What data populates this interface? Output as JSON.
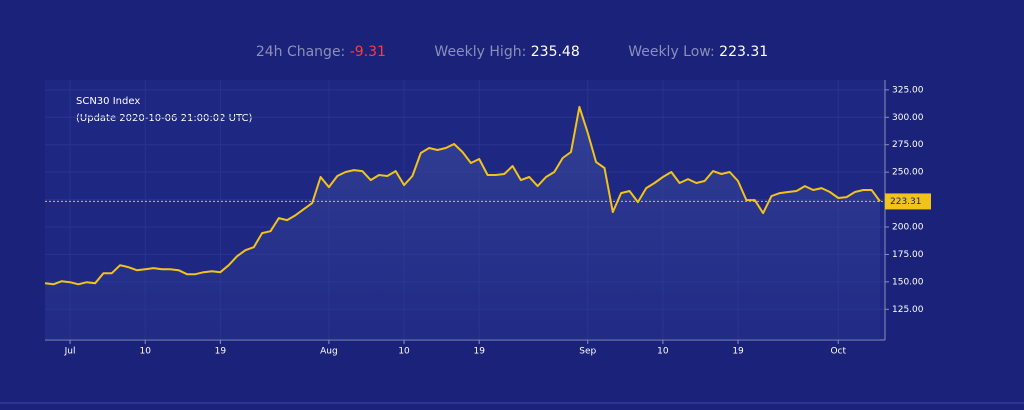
{
  "header": {
    "change_label": "24h Change:",
    "change_value": "-9.31",
    "high_label": "Weekly High:",
    "high_value": "235.48",
    "low_label": "Weekly Low:",
    "low_value": "223.31"
  },
  "chart_data": {
    "type": "line",
    "title": "SCN30 Index",
    "subtitle": "(Update 2020-10-06 21:00:02 UTC)",
    "x": [
      "Jun 28",
      "Jun 29",
      "Jun 30",
      "Jul 1",
      "Jul 2",
      "Jul 3",
      "Jul 4",
      "Jul 5",
      "Jul 6",
      "Jul 7",
      "Jul 8",
      "Jul 9",
      "Jul 10",
      "Jul 11",
      "Jul 12",
      "Jul 13",
      "Jul 14",
      "Jul 15",
      "Jul 16",
      "Jul 17",
      "Jul 18",
      "Jul 19",
      "Jul 20",
      "Jul 21",
      "Jul 22",
      "Jul 23",
      "Jul 24",
      "Jul 25",
      "Jul 26",
      "Jul 27",
      "Jul 28",
      "Jul 29",
      "Jul 30",
      "Jul 31",
      "Aug 1",
      "Aug 2",
      "Aug 3",
      "Aug 4",
      "Aug 5",
      "Aug 6",
      "Aug 7",
      "Aug 8",
      "Aug 9",
      "Aug 10",
      "Aug 11",
      "Aug 12",
      "Aug 13",
      "Aug 14",
      "Aug 15",
      "Aug 16",
      "Aug 17",
      "Aug 18",
      "Aug 19",
      "Aug 20",
      "Aug 21",
      "Aug 22",
      "Aug 23",
      "Aug 24",
      "Aug 25",
      "Aug 26",
      "Aug 27",
      "Aug 28",
      "Aug 29",
      "Aug 30",
      "Aug 31",
      "Sep 1",
      "Sep 2",
      "Sep 3",
      "Sep 4",
      "Sep 5",
      "Sep 6",
      "Sep 7",
      "Sep 8",
      "Sep 9",
      "Sep 10",
      "Sep 11",
      "Sep 12",
      "Sep 13",
      "Sep 14",
      "Sep 15",
      "Sep 16",
      "Sep 17",
      "Sep 18",
      "Sep 19",
      "Sep 20",
      "Sep 21",
      "Sep 22",
      "Sep 23",
      "Sep 24",
      "Sep 25",
      "Sep 26",
      "Sep 27",
      "Sep 28",
      "Sep 29",
      "Sep 30",
      "Oct 1",
      "Oct 2",
      "Oct 3",
      "Oct 4",
      "Oct 5",
      "Oct 6"
    ],
    "series": [
      {
        "name": "SCN30 Index",
        "color": "#f2c318",
        "values": [
          148.7,
          147.8,
          150.6,
          149.7,
          147.8,
          149.7,
          148.7,
          157.9,
          157.9,
          165.2,
          163.4,
          160.6,
          161.5,
          162.5,
          161.5,
          161.5,
          160.6,
          157.0,
          157.0,
          158.8,
          159.7,
          158.8,
          165.2,
          173.4,
          178.9,
          181.6,
          194.4,
          196.2,
          208.1,
          206.3,
          210.8,
          216.3,
          221.8,
          245.6,
          236.4,
          246.5,
          250.1,
          251.9,
          251.0,
          242.8,
          247.4,
          246.5,
          251.0,
          238.2,
          246.5,
          267.5,
          272.0,
          270.2,
          272.0,
          275.7,
          268.4,
          258.3,
          262.0,
          247.4,
          247.4,
          248.3,
          255.6,
          242.8,
          245.6,
          237.3,
          245.6,
          250.1,
          262.9,
          268.4,
          309.5,
          285.7,
          259.2,
          253.8,
          213.6,
          230.9,
          232.8,
          222.7,
          235.5,
          240.1,
          245.6,
          250.1,
          240.1,
          243.7,
          240.1,
          241.9,
          251.0,
          248.3,
          250.1,
          241.9,
          224.5,
          224.5,
          212.7,
          228.2,
          230.9,
          231.9,
          232.8,
          237.3,
          233.7,
          235.5,
          231.9,
          226.4,
          227.3,
          231.9,
          233.7,
          233.7,
          223.31
        ]
      }
    ],
    "last_value": {
      "value": 223.31,
      "label": "223.31"
    },
    "ylim": [
      97,
      334
    ],
    "yticks": [
      {
        "value": 125,
        "label": "125.00"
      },
      {
        "value": 150,
        "label": "150.00"
      },
      {
        "value": 175,
        "label": "175.00"
      },
      {
        "value": 200,
        "label": "200.00"
      },
      {
        "value": 225,
        "label": "225.00"
      },
      {
        "value": 250,
        "label": "250.00"
      },
      {
        "value": 275,
        "label": "275.00"
      },
      {
        "value": 300,
        "label": "300.00"
      },
      {
        "value": 325,
        "label": "325.00"
      }
    ],
    "xticks": [
      {
        "value": "Jul 1",
        "label": "Jul"
      },
      {
        "value": "Jul 10",
        "label": "10"
      },
      {
        "value": "Jul 19",
        "label": "19"
      },
      {
        "value": "Aug 1",
        "label": "Aug"
      },
      {
        "value": "Aug 10",
        "label": "10"
      },
      {
        "value": "Aug 19",
        "label": "19"
      },
      {
        "value": "Sep 1",
        "label": "Sep"
      },
      {
        "value": "Sep 10",
        "label": "10"
      },
      {
        "value": "Sep 19",
        "label": "19"
      },
      {
        "value": "Oct 1",
        "label": "Oct"
      }
    ],
    "grid": true
  }
}
